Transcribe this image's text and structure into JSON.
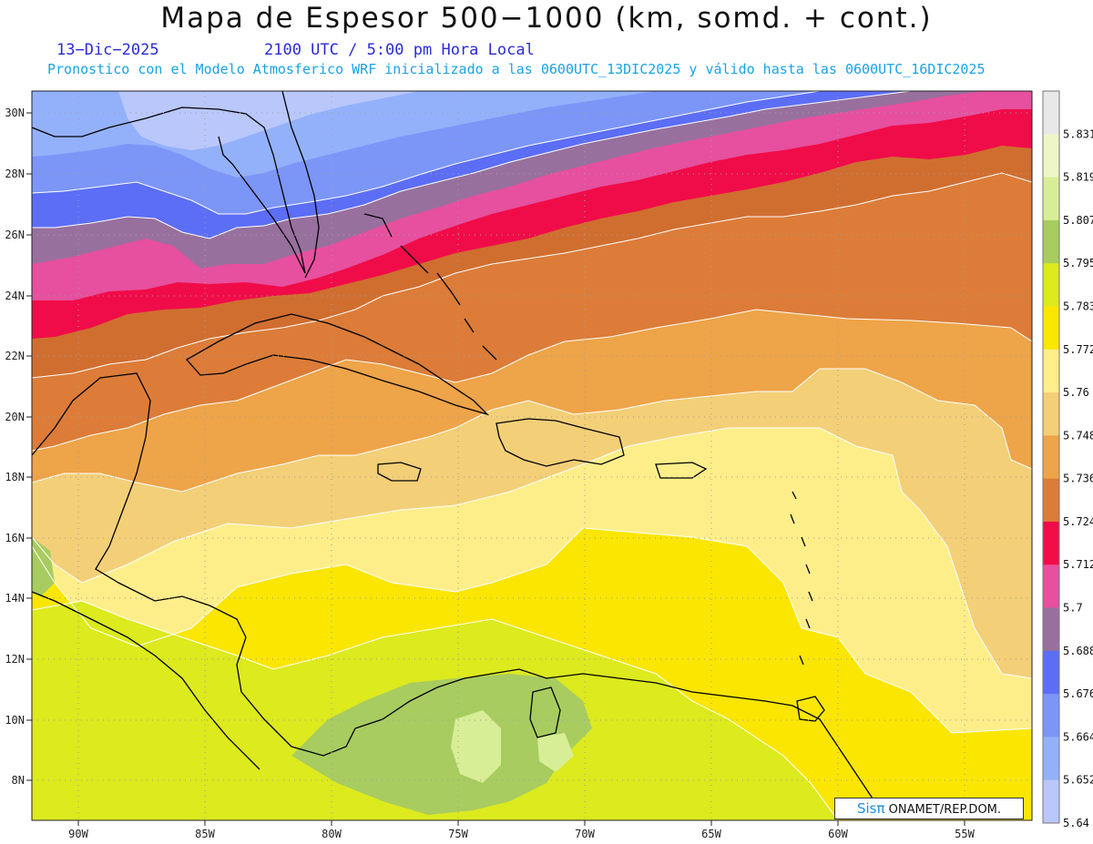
{
  "header": {
    "title": "Mapa de Espesor 500−1000 (km, somd. + cont.)",
    "date": "13−Dic−2025",
    "time": "2100 UTC / 5:00 pm Hora Local",
    "model_line": "Pronostico con el Modelo Atmosferico WRF inicializado a las 0600UTC_13DIC2025 y válido hasta las  0600UTC_16DIC2025"
  },
  "axes": {
    "lat_labels": [
      "30N",
      "28N",
      "26N",
      "24N",
      "22N",
      "20N",
      "18N",
      "16N",
      "14N",
      "12N",
      "10N",
      "8N"
    ],
    "lon_labels": [
      "90W",
      "85W",
      "80W",
      "75W",
      "70W",
      "65W",
      "60W",
      "55W"
    ],
    "lat_values": [
      30,
      28,
      26,
      24,
      22,
      20,
      18,
      16,
      14,
      12,
      10,
      8
    ],
    "lon_values": [
      -90,
      -85,
      -80,
      -75,
      -70,
      -65,
      -60,
      -55
    ],
    "lat_range": [
      6.8,
      30.7
    ],
    "lon_range": [
      -91.8,
      -52.8
    ]
  },
  "colorbar": {
    "labels": [
      "5.831",
      "5.819",
      "5.807",
      "5.795",
      "5.783",
      "5.772",
      "5.76",
      "5.748",
      "5.736",
      "5.724",
      "5.712",
      "5.7",
      "5.688",
      "5.676",
      "5.664",
      "5.652",
      "5.64"
    ],
    "colors": [
      "#e8e8e8",
      "#eef6c8",
      "#d8ee96",
      "#a8cc60",
      "#dcea1e",
      "#fae600",
      "#fdee8a",
      "#f3cf78",
      "#eea448",
      "#dc7c38",
      "#f00c48",
      "#e6509e",
      "#98709e",
      "#5c6ef6",
      "#7c96f8",
      "#93b1fb",
      "#b9c7fb"
    ]
  },
  "credit": {
    "brand": "Sisπ",
    "org": " ONAMET/REP.DOM."
  }
}
